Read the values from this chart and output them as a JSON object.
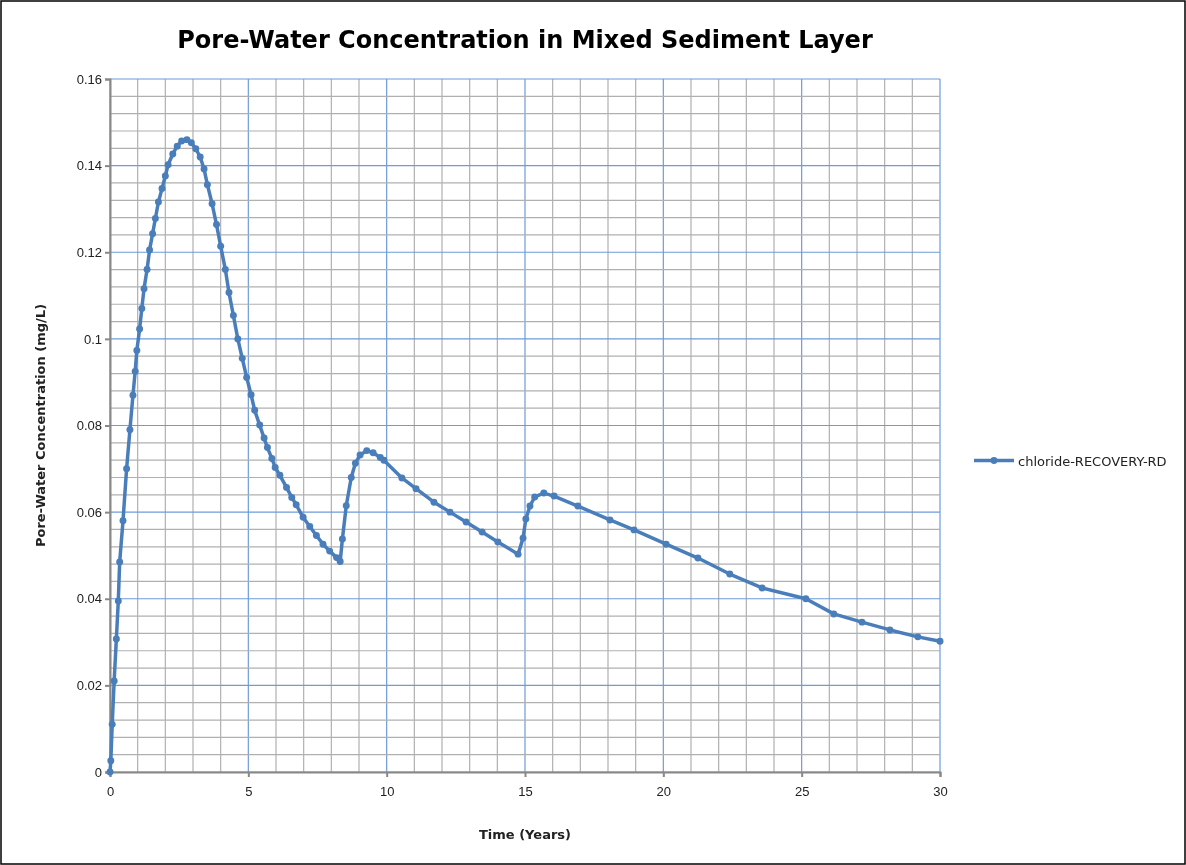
{
  "chart_data": {
    "type": "line",
    "title": "Pore-Water Concentration in Mixed Sediment Layer",
    "xlabel": "Time (Years)",
    "ylabel": "Pore-Water Concentration (mg/L)",
    "xlim": [
      0,
      30
    ],
    "xticks": [
      0,
      5,
      10,
      15,
      20,
      25,
      30
    ],
    "ylim": [
      0,
      0.16
    ],
    "yticks": [
      0,
      0.02,
      0.04,
      0.06,
      0.08,
      0.1,
      0.12,
      0.14,
      0.16
    ],
    "grid": true,
    "legend": "right",
    "marker": "circle",
    "line_style": "solid",
    "series": [
      {
        "name": "chloride-RECOVERY-RD",
        "color": "#4a7ebb",
        "x": [
          0,
          0.03,
          0.08,
          0.15,
          0.23,
          0.3,
          0.35,
          0.47,
          0.6,
          0.72,
          0.83,
          0.91,
          0.97,
          1.07,
          1.15,
          1.23,
          1.34,
          1.43,
          1.54,
          1.64,
          1.75,
          1.88,
          2.0,
          2.1,
          2.27,
          2.43,
          2.59,
          2.78,
          2.94,
          3.1,
          3.26,
          3.4,
          3.52,
          3.69,
          3.85,
          4.0,
          4.17,
          4.3,
          4.46,
          4.62,
          4.78,
          4.94,
          5.1,
          5.23,
          5.41,
          5.57,
          5.69,
          5.85,
          5.97,
          6.14,
          6.38,
          6.57,
          6.73,
          6.98,
          7.22,
          7.46,
          7.7,
          7.94,
          8.19,
          8.32,
          8.4,
          8.54,
          8.72,
          8.87,
          9.04,
          9.28,
          9.51,
          9.77,
          9.9,
          10.55,
          11.06,
          11.71,
          12.29,
          12.87,
          13.45,
          14.02,
          14.75,
          14.93,
          15.03,
          15.18,
          15.35,
          15.68,
          16.05,
          16.91,
          18.07,
          18.94,
          20.1,
          21.25,
          22.4,
          23.57,
          25.15,
          26.16,
          27.18,
          28.19,
          29.2,
          30
        ],
        "values": [
          0,
          0.0026,
          0.011,
          0.021,
          0.0307,
          0.0395,
          0.0485,
          0.058,
          0.07,
          0.079,
          0.087,
          0.0925,
          0.0973,
          0.1023,
          0.107,
          0.1116,
          0.116,
          0.1205,
          0.1243,
          0.1278,
          0.1316,
          0.1347,
          0.1376,
          0.1402,
          0.1427,
          0.1445,
          0.1457,
          0.146,
          0.1453,
          0.1439,
          0.142,
          0.1392,
          0.1356,
          0.1312,
          0.1264,
          0.1214,
          0.116,
          0.1107,
          0.1054,
          0.1,
          0.0955,
          0.0911,
          0.0871,
          0.0835,
          0.0801,
          0.0771,
          0.0749,
          0.0724,
          0.0703,
          0.0685,
          0.0657,
          0.0634,
          0.0617,
          0.0588,
          0.0567,
          0.0546,
          0.0526,
          0.051,
          0.0495,
          0.0486,
          0.0538,
          0.0615,
          0.068,
          0.0713,
          0.0732,
          0.0742,
          0.0737,
          0.0726,
          0.072,
          0.0679,
          0.0654,
          0.0623,
          0.06,
          0.0577,
          0.0554,
          0.0531,
          0.0503,
          0.054,
          0.0584,
          0.0614,
          0.0635,
          0.0644,
          0.0637,
          0.0614,
          0.0582,
          0.0559,
          0.0526,
          0.0494,
          0.0457,
          0.0425,
          0.04,
          0.0365,
          0.0346,
          0.0328,
          0.0312,
          0.0302
        ]
      }
    ]
  }
}
